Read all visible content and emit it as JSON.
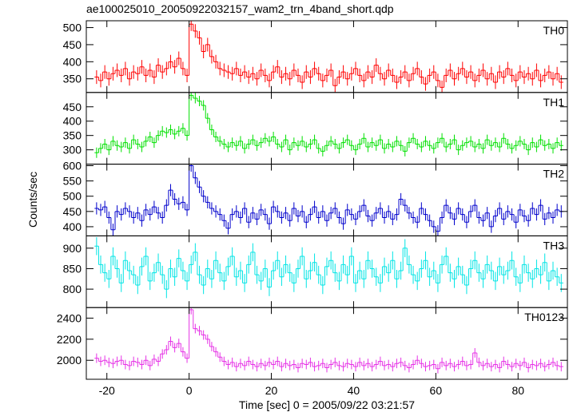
{
  "chart_data": {
    "type": "step",
    "title": "ae100025010_20050922032157_wam2_trn_4band_short.qdp",
    "xlabel": "Time [sec] 0 = 2005/09/22 03:21:57",
    "ylabel": "Counts/sec",
    "xlim": [
      -25,
      92
    ],
    "xticks": [
      -20,
      0,
      20,
      40,
      60,
      80
    ],
    "x": [
      -22.5,
      -21.5,
      -20.5,
      -19.5,
      -18.5,
      -17.5,
      -16.5,
      -15.5,
      -14.5,
      -13.5,
      -12.5,
      -11.5,
      -10.5,
      -9.5,
      -8.5,
      -7.5,
      -6.5,
      -5.5,
      -4.5,
      -3.5,
      -2.5,
      -1.5,
      -0.5,
      0.5,
      1.5,
      2.5,
      3.5,
      4.5,
      5.5,
      6.5,
      7.5,
      8.5,
      9.5,
      10.5,
      11.5,
      12.5,
      13.5,
      14.5,
      15.5,
      16.5,
      17.5,
      18.5,
      19.5,
      20.5,
      21.5,
      22.5,
      23.5,
      24.5,
      25.5,
      26.5,
      27.5,
      28.5,
      29.5,
      30.5,
      31.5,
      32.5,
      33.5,
      34.5,
      35.5,
      36.5,
      37.5,
      38.5,
      39.5,
      40.5,
      41.5,
      42.5,
      43.5,
      44.5,
      45.5,
      46.5,
      47.5,
      48.5,
      49.5,
      50.5,
      51.5,
      52.5,
      53.5,
      54.5,
      55.5,
      56.5,
      57.5,
      58.5,
      59.5,
      60.5,
      61.5,
      62.5,
      63.5,
      64.5,
      65.5,
      66.5,
      67.5,
      68.5,
      69.5,
      70.5,
      71.5,
      72.5,
      73.5,
      74.5,
      75.5,
      76.5,
      77.5,
      78.5,
      79.5,
      80.5,
      81.5,
      82.5,
      83.5,
      84.5,
      85.5,
      86.5,
      87.5,
      88.5,
      89.5,
      90.5
    ],
    "series": [
      {
        "name": "TH0",
        "color": "#ff0000",
        "ylim": [
          310,
          520
        ],
        "yticks": [
          350,
          400,
          450,
          500
        ],
        "error": 20,
        "values": [
          355,
          345,
          370,
          350,
          365,
          375,
          360,
          380,
          350,
          370,
          365,
          385,
          360,
          375,
          355,
          390,
          370,
          380,
          400,
          385,
          410,
          380,
          360,
          510,
          490,
          470,
          430,
          450,
          415,
          400,
          380,
          375,
          370,
          365,
          380,
          360,
          370,
          355,
          365,
          350,
          375,
          360,
          345,
          370,
          385,
          355,
          365,
          350,
          375,
          360,
          340,
          370,
          355,
          380,
          365,
          345,
          360,
          375,
          330,
          355,
          370,
          350,
          365,
          380,
          360,
          345,
          370,
          355,
          390,
          365,
          350,
          375,
          360,
          340,
          355,
          370,
          345,
          365,
          380,
          355,
          335,
          360,
          370,
          345,
          325,
          360,
          375,
          350,
          365,
          380,
          355,
          370,
          345,
          360,
          375,
          350,
          365,
          340,
          370,
          355,
          380,
          360,
          345,
          370,
          355,
          365,
          350,
          375,
          345,
          360,
          370,
          350,
          365,
          340
        ]
      },
      {
        "name": "TH1",
        "color": "#00e000",
        "ylim": [
          250,
          500
        ],
        "yticks": [
          300,
          350,
          400,
          450
        ],
        "error": 18,
        "values": [
          290,
          305,
          320,
          300,
          330,
          315,
          310,
          325,
          305,
          335,
          320,
          310,
          330,
          345,
          325,
          350,
          365,
          360,
          370,
          355,
          365,
          375,
          350,
          490,
          480,
          470,
          455,
          410,
          370,
          345,
          330,
          320,
          310,
          325,
          315,
          330,
          305,
          320,
          335,
          315,
          325,
          340,
          330,
          345,
          320,
          310,
          335,
          300,
          325,
          315,
          330,
          310,
          320,
          335,
          305,
          295,
          315,
          330,
          320,
          305,
          325,
          335,
          315,
          300,
          320,
          340,
          310,
          325,
          315,
          335,
          305,
          320,
          310,
          330,
          315,
          295,
          325,
          340,
          320,
          310,
          330,
          315,
          305,
          325,
          340,
          310,
          320,
          335,
          300,
          315,
          325,
          330,
          310,
          320,
          305,
          335,
          315,
          325,
          310,
          340,
          320,
          305,
          315,
          330,
          320,
          300,
          325,
          310,
          335,
          315,
          320,
          305,
          325,
          315
        ]
      },
      {
        "name": "TH2",
        "color": "#0000cc",
        "ylim": [
          370,
          605
        ],
        "yticks": [
          400,
          450,
          500,
          550,
          600
        ],
        "error": 20,
        "values": [
          460,
          455,
          465,
          430,
          390,
          450,
          440,
          460,
          450,
          430,
          445,
          420,
          455,
          440,
          465,
          445,
          430,
          470,
          520,
          490,
          475,
          480,
          455,
          600,
          560,
          530,
          500,
          480,
          460,
          450,
          440,
          420,
          395,
          440,
          450,
          430,
          460,
          415,
          445,
          425,
          455,
          440,
          410,
          465,
          450,
          430,
          445,
          420,
          460,
          435,
          450,
          415,
          440,
          465,
          430,
          450,
          420,
          445,
          460,
          430,
          410,
          455,
          440,
          425,
          450,
          470,
          435,
          420,
          445,
          460,
          430,
          450,
          425,
          440,
          490,
          470,
          445,
          430,
          415,
          460,
          440,
          420,
          400,
          385,
          430,
          470,
          445,
          425,
          460,
          440,
          415,
          450,
          470,
          430,
          420,
          445,
          400,
          435,
          460,
          425,
          450,
          440,
          415,
          455,
          435,
          420,
          460,
          440,
          470,
          425,
          445,
          430,
          455,
          450
        ]
      },
      {
        "name": "TH3",
        "color": "#00e5e5",
        "ylim": [
          755,
          930
        ],
        "yticks": [
          800,
          850,
          900
        ],
        "error": 22,
        "values": [
          905,
          860,
          840,
          825,
          880,
          850,
          815,
          870,
          845,
          835,
          810,
          855,
          880,
          820,
          840,
          865,
          835,
          800,
          850,
          830,
          875,
          845,
          820,
          860,
          890,
          835,
          810,
          850,
          825,
          870,
          840,
          820,
          855,
          880,
          830,
          845,
          815,
          860,
          890,
          835,
          820,
          850,
          805,
          845,
          870,
          830,
          860,
          840,
          815,
          850,
          880,
          825,
          845,
          865,
          835,
          810,
          855,
          870,
          840,
          820,
          860,
          835,
          880,
          815,
          845,
          825,
          870,
          850,
          830,
          815,
          855,
          840,
          870,
          825,
          845,
          900,
          860,
          835,
          820,
          850,
          870,
          830,
          845,
          815,
          860,
          880,
          840,
          825,
          855,
          835,
          810,
          850,
          870,
          840,
          825,
          860,
          845,
          820,
          855,
          835,
          845,
          870,
          830,
          815,
          860,
          840,
          825,
          850,
          835,
          865,
          820,
          845,
          830,
          815
        ]
      },
      {
        "name": "TH0123",
        "color": "#e633e6",
        "ylim": [
          1820,
          2500
        ],
        "yticks": [
          2000,
          2200,
          2400
        ],
        "error": 45,
        "values": [
          2020,
          1990,
          2000,
          1980,
          1970,
          1990,
          2000,
          1960,
          1950,
          1990,
          1980,
          1960,
          2000,
          1950,
          2010,
          1990,
          2060,
          2100,
          2180,
          2120,
          2160,
          2080,
          2020,
          2480,
          2300,
          2280,
          2240,
          2200,
          2130,
          2080,
          2030,
          1990,
          1960,
          1980,
          1940,
          1970,
          1950,
          1990,
          1960,
          1940,
          1970,
          1950,
          1980,
          1960,
          1990,
          1940,
          1970,
          1950,
          1960,
          1930,
          1970,
          1960,
          1980,
          1940,
          1950,
          1970,
          1930,
          1960,
          1980,
          1950,
          1940,
          1970,
          1960,
          1940,
          1980,
          1950,
          1970,
          1940,
          1960,
          1990,
          1950,
          1960,
          1940,
          1970,
          1980,
          1950,
          1930,
          1960,
          2000,
          1970,
          1940,
          1950,
          1960,
          1920,
          1980,
          1950,
          1970,
          1940,
          1960,
          1990,
          1950,
          1960,
          2070,
          1980,
          1950,
          1970,
          1940,
          1960,
          1930,
          1990,
          1960,
          1940,
          1970,
          1950,
          1980,
          1930,
          1960,
          1950,
          1970,
          1940,
          1960,
          1980,
          1950,
          1940
        ]
      }
    ]
  }
}
